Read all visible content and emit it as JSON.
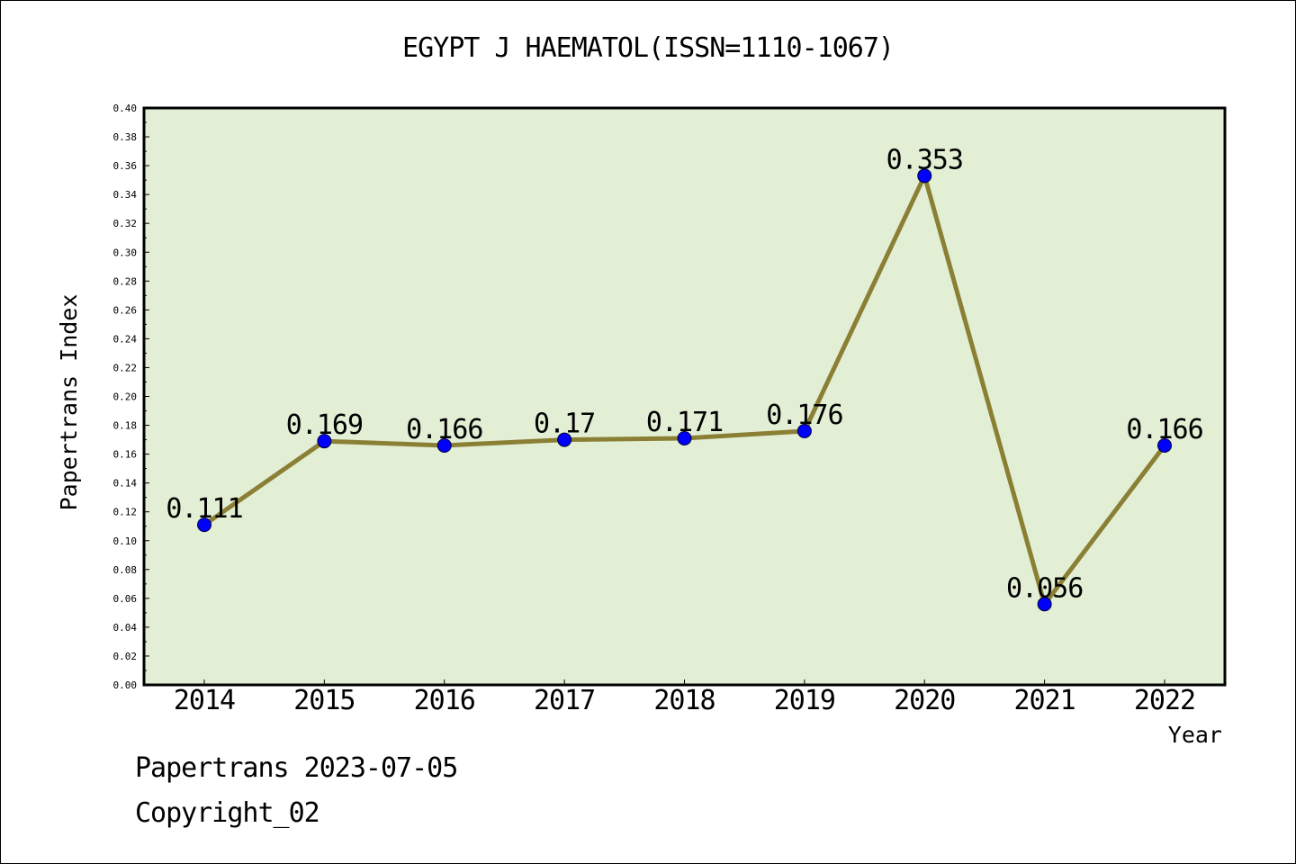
{
  "chart_data": {
    "type": "line",
    "title": "EGYPT J HAEMATOL(ISSN=1110-1067)",
    "xlabel": "Year",
    "ylabel": "Papertrans Index",
    "categories": [
      "2014",
      "2015",
      "2016",
      "2017",
      "2018",
      "2019",
      "2020",
      "2021",
      "2022"
    ],
    "values": [
      0.111,
      0.169,
      0.166,
      0.17,
      0.171,
      0.176,
      0.353,
      0.056,
      0.166
    ],
    "data_labels": [
      "0.111",
      "0.169",
      "0.166",
      "0.17",
      "0.171",
      "0.176",
      "0.353",
      "0.056",
      "0.166"
    ],
    "ylim": [
      0,
      0.4
    ],
    "yticks": [
      "0.00",
      "0.02",
      "0.04",
      "0.06",
      "0.08",
      "0.10",
      "0.12",
      "0.14",
      "0.16",
      "0.18",
      "0.20",
      "0.22",
      "0.24",
      "0.26",
      "0.28",
      "0.30",
      "0.32",
      "0.34",
      "0.36",
      "0.38",
      "0.40"
    ],
    "grid": false,
    "colors": {
      "plot_background": "#e2efd5",
      "line": "#8b7f35",
      "marker": "#0000ff"
    }
  },
  "footer": {
    "line1": "Papertrans 2023-07-05",
    "line2": "Copyright_02"
  }
}
